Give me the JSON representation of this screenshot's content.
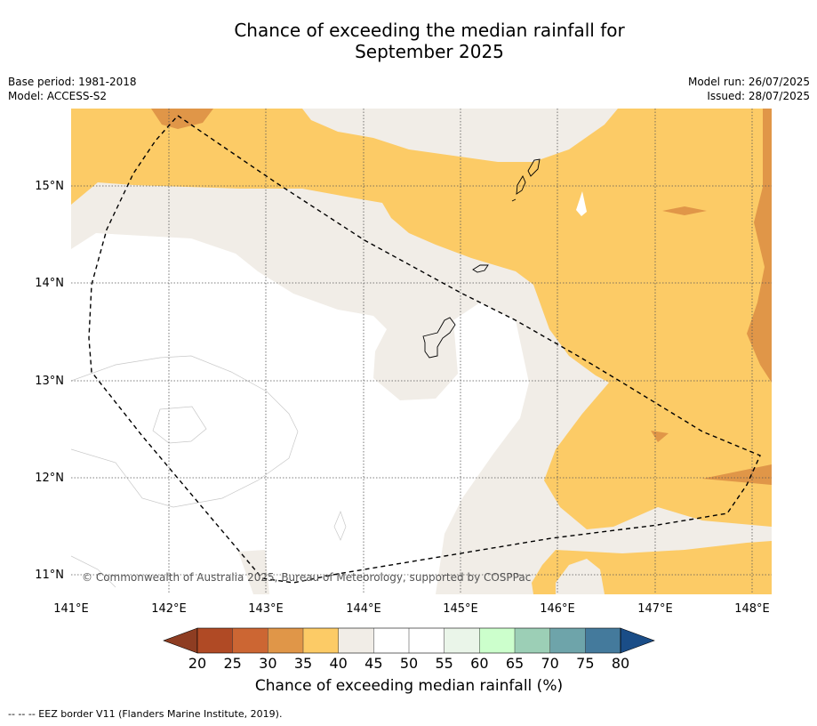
{
  "title_line1": "Chance of exceeding the median rainfall for",
  "title_line2": "September 2025",
  "meta_left": {
    "base_period": "Base period: 1981-2018",
    "model": "Model: ACCESS-S2"
  },
  "meta_right": {
    "model_run": "Model run: 26/07/2025",
    "issued": "Issued: 28/07/2025"
  },
  "map": {
    "lat_labels": [
      "15°N",
      "14°N",
      "13°N",
      "12°N",
      "11°N"
    ],
    "lon_labels": [
      "141°E",
      "142°E",
      "143°E",
      "144°E",
      "145°E",
      "146°E",
      "147°E",
      "148°E"
    ],
    "copyright": "© Commonwealth of Australia 2025, Bureau of Meteorology, supported by COSPPac"
  },
  "colorbar": {
    "ticks": [
      "20",
      "25",
      "30",
      "35",
      "40",
      "45",
      "50",
      "55",
      "60",
      "65",
      "70",
      "75",
      "80"
    ],
    "colors": [
      "#b04a25",
      "#cc6633",
      "#e09648",
      "#fccb66",
      "#f1ede7",
      "#ffffff",
      "#ffffff",
      "#eaf5e9",
      "#ccffcc",
      "#9ccfb6",
      "#6ea4aa",
      "#447a9c"
    ],
    "under_color": "#8e3d22",
    "over_color": "#1a4d87",
    "title": "Chance of exceeding median rainfall (%)"
  },
  "footnote": "--  --  -- EEZ border V11 (Flanders Marine Institute, 2019)."
}
